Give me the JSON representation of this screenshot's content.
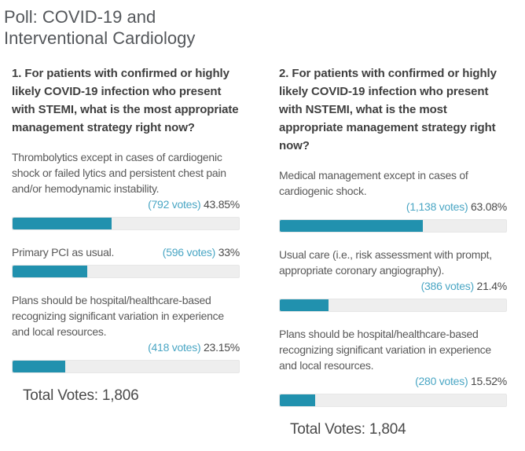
{
  "page_title": "Poll: COVID-19 and Interventional Cardiology",
  "colors": {
    "bar_fill": "#2191ae",
    "bar_background": "#eeeeee",
    "votes_link": "#4aa6c4",
    "question_text": "#3f3f3f",
    "body_text": "#595959"
  },
  "polls": [
    {
      "question": "1. For patients with confirmed or highly likely COVID-19 infection who present with STEMI, what is the most appropriate management strategy right now?",
      "options": [
        {
          "text": "Thrombolytics except in cases of cardiogenic shock or failed lytics and persistent chest pain and/or hemodynamic instability.",
          "votes": "(792 votes)",
          "percent": "43.85%",
          "percent_value": 43.85
        },
        {
          "text": "Primary PCI as usual.",
          "votes": "(596 votes)",
          "percent": "33%",
          "percent_value": 33
        },
        {
          "text": "Plans should be hospital/healthcare-based recognizing significant variation in experience and local resources.",
          "votes": "(418 votes)",
          "percent": "23.15%",
          "percent_value": 23.15
        }
      ],
      "total_label": "Total Votes: 1,806"
    },
    {
      "question": "2. For patients with confirmed or highly likely COVID-19 infection who present with NSTEMI, what is the most appropriate management strategy right now?",
      "options": [
        {
          "text": "Medical management except in cases of cardiogenic shock.",
          "votes": "(1,138 votes)",
          "percent": "63.08%",
          "percent_value": 63.08
        },
        {
          "text": "Usual care (i.e., risk assessment with prompt, appropriate coronary angiography).",
          "votes": "(386 votes)",
          "percent": "21.4%",
          "percent_value": 21.4
        },
        {
          "text": "Plans should be hospital/healthcare-based recognizing significant variation in experience and local resources.",
          "votes": "(280 votes)",
          "percent": "15.52%",
          "percent_value": 15.52
        }
      ],
      "total_label": "Total Votes: 1,804"
    }
  ]
}
